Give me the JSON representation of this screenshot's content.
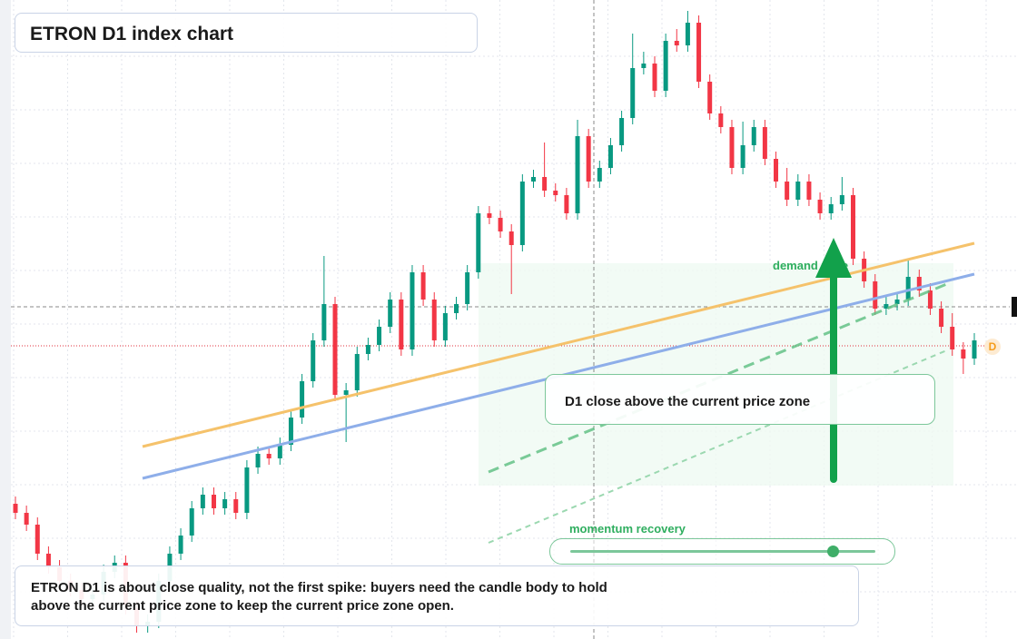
{
  "chart_data": {
    "type": "candlestick",
    "title": "ETRON D1 index chart",
    "ylim": [
      0,
      704
    ],
    "grid": true,
    "up_color": "#089981",
    "down_color": "#f23645",
    "series": [
      {
        "open": [
          149,
          139,
          126,
          94,
          79,
          64,
          54,
          44,
          49,
          74,
          84,
          34,
          14,
          19,
          64,
          94,
          114,
          144,
          159,
          144,
          154,
          139,
          189,
          204,
          199,
          214,
          244,
          284,
          329,
          369,
          269,
          274,
          314,
          324,
          344,
          374,
          319,
          404,
          374,
          329,
          359,
          369,
          404,
          469,
          464,
          449,
          434,
          504,
          509,
          494,
          489,
          469,
          554,
          504,
          519,
          544,
          574,
          629,
          634,
          604,
          659,
          654,
          679,
          614,
          579,
          564,
          519,
          544,
          564,
          529,
          504,
          484,
          504,
          484,
          469,
          479,
          489,
          419,
          394,
          364,
          369,
          374,
          399,
          384,
          364,
          344,
          319,
          309
        ],
        "high": [
          157,
          147,
          134,
          102,
          87,
          72,
          62,
          57,
          82,
          92,
          92,
          42,
          27,
          72,
          102,
          122,
          152,
          167,
          167,
          162,
          162,
          197,
          212,
          212,
          222,
          252,
          292,
          337,
          422,
          377,
          282,
          322,
          332,
          352,
          382,
          382,
          412,
          412,
          382,
          367,
          377,
          412,
          477,
          477,
          472,
          457,
          512,
          517,
          547,
          502,
          497,
          572,
          562,
          527,
          552,
          582,
          667,
          647,
          642,
          667,
          672,
          692,
          687,
          622,
          587,
          572,
          570,
          572,
          572,
          537,
          519,
          512,
          512,
          492,
          487,
          509,
          497,
          427,
          402,
          377,
          382,
          417,
          407,
          392,
          372,
          359,
          327,
          337
        ],
        "low": [
          132,
          119,
          87,
          72,
          57,
          47,
          37,
          37,
          42,
          67,
          27,
          7,
          7,
          12,
          57,
          87,
          107,
          137,
          137,
          137,
          132,
          132,
          182,
          192,
          192,
          207,
          237,
          277,
          322,
          262,
          217,
          267,
          307,
          317,
          337,
          312,
          312,
          367,
          322,
          322,
          352,
          362,
          397,
          457,
          442,
          380,
          427,
          497,
          487,
          482,
          462,
          462,
          497,
          497,
          512,
          537,
          567,
          622,
          597,
          597,
          647,
          647,
          607,
          572,
          557,
          512,
          512,
          537,
          522,
          497,
          477,
          477,
          477,
          462,
          462,
          472,
          412,
          387,
          357,
          357,
          362,
          367,
          377,
          357,
          337,
          312,
          292,
          302
        ],
        "close": [
          139,
          126,
          94,
          79,
          64,
          54,
          44,
          49,
          74,
          84,
          34,
          14,
          19,
          64,
          94,
          114,
          144,
          159,
          144,
          154,
          139,
          189,
          204,
          199,
          214,
          244,
          284,
          329,
          369,
          269,
          274,
          314,
          324,
          344,
          374,
          319,
          404,
          374,
          329,
          359,
          369,
          404,
          469,
          464,
          449,
          434,
          504,
          509,
          494,
          489,
          469,
          554,
          504,
          519,
          544,
          574,
          629,
          634,
          604,
          659,
          654,
          679,
          614,
          579,
          564,
          519,
          544,
          564,
          529,
          504,
          484,
          504,
          484,
          469,
          479,
          489,
          419,
          394,
          364,
          369,
          374,
          399,
          384,
          364,
          344,
          319,
          309,
          329
        ]
      }
    ],
    "annotations": {
      "zone": "demand zone",
      "callout": "D1 close above the current price zone",
      "slider": "momentum recovery",
      "marker": "D",
      "note": [
        "ETRON D1 is about close quality, not the first spike: buyers need the candle body to hold",
        "above the current price zone to keep the current price zone open."
      ]
    }
  }
}
